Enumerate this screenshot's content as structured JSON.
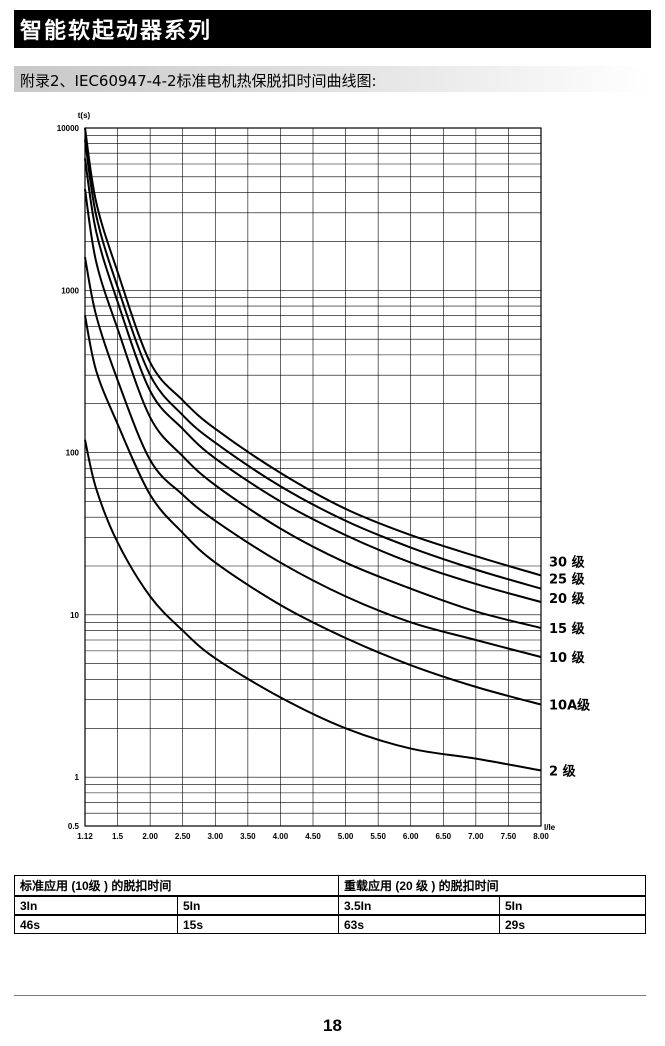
{
  "header": {
    "title": "智能软起动器系列"
  },
  "section": {
    "title": "附录2、IEC60947-4-2标准电机热保脱扣时间曲线图:"
  },
  "chart_data": {
    "type": "line",
    "title": "",
    "xlabel": "I/Ie",
    "ylabel": "t(s)",
    "xlim": [
      1.12,
      8.0
    ],
    "ylim": [
      0.5,
      10000
    ],
    "yscale": "log",
    "grid": true,
    "x_ticks": [
      1.12,
      1.5,
      2.0,
      2.5,
      3.0,
      3.5,
      4.0,
      4.5,
      5.0,
      5.5,
      6.0,
      6.5,
      7.0,
      7.5,
      8.0
    ],
    "x_tick_labels": [
      "1.12",
      "1.5",
      "2.00",
      "2.50",
      "3.00",
      "3.50",
      "4.00",
      "4.50",
      "5.00",
      "5.50",
      "6.00",
      "6.50",
      "7.00",
      "7.50",
      "8.00"
    ],
    "y_ticks": [
      0.5,
      1,
      10,
      100,
      1000,
      10000
    ],
    "y_tick_labels": [
      "0.5",
      "1",
      "10",
      "100",
      "1000",
      "10000"
    ],
    "x": [
      1.12,
      1.25,
      1.5,
      2.0,
      2.5,
      3.0,
      4.0,
      5.0,
      6.0,
      7.0,
      8.0
    ],
    "series": [
      {
        "name": "30 级",
        "values": [
          10000,
          3500,
          1300,
          360,
          210,
          140,
          75,
          45,
          31,
          23,
          17.5
        ]
      },
      {
        "name": "25 级",
        "values": [
          8500,
          2900,
          1050,
          300,
          170,
          115,
          62,
          38,
          26,
          19,
          14.5
        ]
      },
      {
        "name": "20 级",
        "values": [
          6500,
          2300,
          850,
          240,
          140,
          92,
          50,
          31,
          21,
          15.5,
          12
        ]
      },
      {
        "name": "15 级",
        "values": [
          4200,
          1500,
          580,
          165,
          95,
          63,
          34,
          21,
          14.5,
          10.5,
          8.3
        ]
      },
      {
        "name": "10 级",
        "values": [
          1600,
          700,
          280,
          90,
          55,
          38,
          21,
          13,
          9.0,
          7.0,
          5.5
        ]
      },
      {
        "name": "10A级",
        "values": [
          700,
          320,
          150,
          55,
          32,
          21,
          11.5,
          7.2,
          4.9,
          3.6,
          2.8
        ]
      },
      {
        "name": "2  级",
        "values": [
          120,
          60,
          28,
          13,
          8.0,
          5.4,
          3.1,
          2.0,
          1.5,
          1.3,
          1.1
        ]
      }
    ]
  },
  "table": {
    "header_left": "标准应用 (10级 ) 的脱扣时间",
    "header_right": "重载应用 (20 级 ) 的脱扣时间",
    "current_row": [
      "3In",
      "5In",
      "3.5In",
      "5In"
    ],
    "time_row": [
      "46s",
      "15s",
      "63s",
      "29s"
    ]
  },
  "footer": {
    "page_number": "18"
  }
}
